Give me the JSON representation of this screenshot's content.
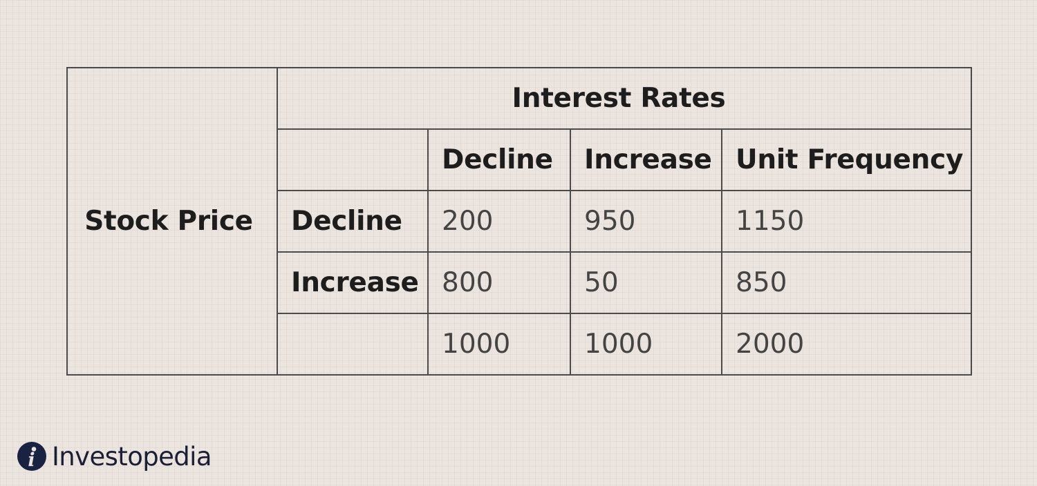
{
  "table": {
    "title": "Interest Rates",
    "row_variable": "Stock Price",
    "columns": [
      "Decline",
      "Increase",
      "Unit Frequency"
    ],
    "rows": [
      {
        "label": "Decline",
        "values": [
          "200",
          "950",
          "1150"
        ]
      },
      {
        "label": "Increase",
        "values": [
          "800",
          "50",
          "850"
        ]
      },
      {
        "label": "",
        "values": [
          "1000",
          "1000",
          "2000"
        ]
      }
    ]
  },
  "brand": {
    "name": "Investopedia",
    "logo_letter": "i",
    "logo_icon": "investopedia-logo-icon",
    "logo_color": "#1a2241"
  },
  "colors": {
    "background": "#ece5df",
    "grid_line": "#4a4a4a",
    "header_text": "#1d1d1d",
    "value_text": "#444444"
  }
}
